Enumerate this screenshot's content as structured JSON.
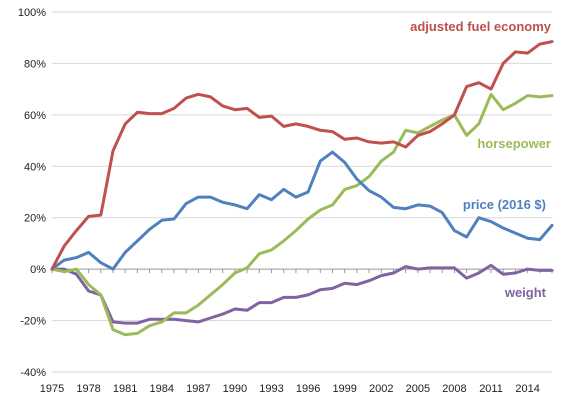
{
  "chart_data": {
    "type": "line",
    "title": "",
    "xlabel": "",
    "ylabel": "",
    "xlim": [
      1975,
      2016
    ],
    "ylim": [
      -40,
      100
    ],
    "y_unit": "%",
    "grid": "horizontal",
    "x_ticks": [
      "1975",
      "1978",
      "1981",
      "1984",
      "1987",
      "1990",
      "1993",
      "1996",
      "1999",
      "2002",
      "2005",
      "2008",
      "2011",
      "2014"
    ],
    "y_ticks": [
      "100%",
      "80%",
      "60%",
      "40%",
      "20%",
      "0%",
      "-20%",
      "-40%"
    ],
    "x": [
      1975,
      1976,
      1977,
      1978,
      1979,
      1980,
      1981,
      1982,
      1983,
      1984,
      1985,
      1986,
      1987,
      1988,
      1989,
      1990,
      1991,
      1992,
      1993,
      1994,
      1995,
      1996,
      1997,
      1998,
      1999,
      2000,
      2001,
      2002,
      2003,
      2004,
      2005,
      2006,
      2007,
      2008,
      2009,
      2010,
      2011,
      2012,
      2013,
      2014,
      2015,
      2016
    ],
    "series": [
      {
        "name": "adjusted fuel economy",
        "color": "#c0504d",
        "values": [
          0,
          9,
          15,
          20.5,
          21,
          46,
          56.5,
          61,
          60.5,
          60.5,
          62.5,
          66.5,
          68,
          67,
          63.5,
          62,
          62.5,
          59,
          59.5,
          55.5,
          56.5,
          55.5,
          54,
          53.5,
          50.5,
          51,
          49.5,
          49,
          49.5,
          47.5,
          52,
          53.5,
          56.5,
          60,
          71,
          72.5,
          70,
          80,
          84.5,
          84,
          87.5,
          88.5
        ]
      },
      {
        "name": "horsepower",
        "color": "#9bbb59",
        "values": [
          0,
          -1,
          0,
          -6,
          -10,
          -23.5,
          -25.5,
          -25,
          -22,
          -20.5,
          -17,
          -17,
          -14,
          -10,
          -6,
          -1.5,
          0.5,
          6,
          7.5,
          11,
          15,
          19.5,
          23,
          25,
          31,
          32.5,
          36,
          42,
          45.5,
          54,
          53,
          55.5,
          58,
          60,
          52,
          56.5,
          68,
          62,
          64.5,
          67.5,
          67,
          67.5
        ]
      },
      {
        "name": "price (2016 $)",
        "color": "#4f81bd",
        "values": [
          0,
          3.5,
          4.5,
          6.5,
          2.5,
          0,
          6.5,
          11,
          15.5,
          19,
          19.5,
          25.5,
          28,
          28,
          26,
          25,
          23.5,
          29,
          27,
          31,
          28,
          30,
          42,
          45.5,
          41.5,
          35,
          30.5,
          28,
          24,
          23.5,
          25,
          24.5,
          22,
          15,
          12.5,
          20,
          18.5,
          16,
          14,
          12,
          11.5,
          17
        ]
      },
      {
        "name": "weight",
        "color": "#8064a2",
        "values": [
          0,
          0,
          -2,
          -8.5,
          -10,
          -20.5,
          -21,
          -21,
          -19.5,
          -19.5,
          -19.5,
          -20,
          -20.5,
          -19,
          -17.5,
          -15.5,
          -16,
          -13,
          -13,
          -11,
          -11,
          -10,
          -8,
          -7.5,
          -5.5,
          -6,
          -4.5,
          -2.5,
          -1.5,
          1,
          0,
          0.5,
          0.5,
          0.5,
          -3.5,
          -1.5,
          1.5,
          -2,
          -1.5,
          0,
          -0.5,
          -0.5
        ]
      }
    ]
  }
}
